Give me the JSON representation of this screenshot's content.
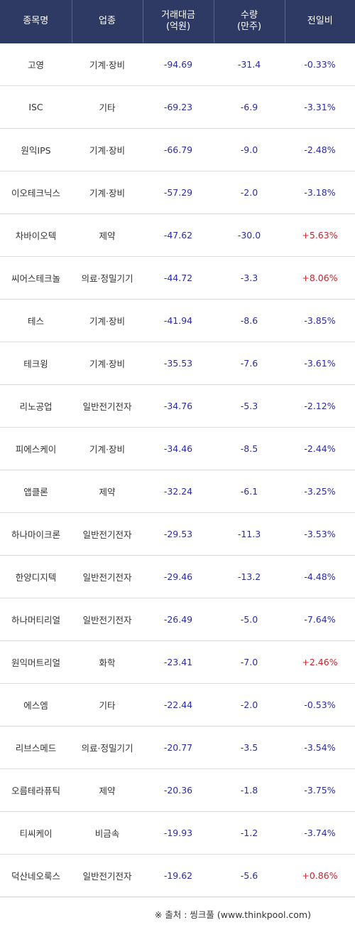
{
  "headers": [
    "종목명",
    "업종",
    "거래대금\n(억원)",
    "수량\n(만주)",
    "전일비"
  ],
  "rows": [
    {
      "name": "고영",
      "sector": "기계·장비",
      "amount": "-94.69",
      "volume": "-31.4",
      "change": "-0.33%"
    },
    {
      "name": "ISC",
      "sector": "기타",
      "amount": "-69.23",
      "volume": "-6.9",
      "change": "-3.31%"
    },
    {
      "name": "원익IPS",
      "sector": "기계·장비",
      "amount": "-66.79",
      "volume": "-9.0",
      "change": "-2.48%"
    },
    {
      "name": "이오테크닉스",
      "sector": "기계·장비",
      "amount": "-57.29",
      "volume": "-2.0",
      "change": "-3.18%"
    },
    {
      "name": "차바이오텍",
      "sector": "제약",
      "amount": "-47.62",
      "volume": "-30.0",
      "change": "+5.63%"
    },
    {
      "name": "씨어스테크놀",
      "sector": "의료·정밀기기",
      "amount": "-44.72",
      "volume": "-3.3",
      "change": "+8.06%"
    },
    {
      "name": "테스",
      "sector": "기계·장비",
      "amount": "-41.94",
      "volume": "-8.6",
      "change": "-3.85%"
    },
    {
      "name": "테크윙",
      "sector": "기계·장비",
      "amount": "-35.53",
      "volume": "-7.6",
      "change": "-3.61%"
    },
    {
      "name": "리노공업",
      "sector": "일반전기전자",
      "amount": "-34.76",
      "volume": "-5.3",
      "change": "-2.12%"
    },
    {
      "name": "피에스케이",
      "sector": "기계·장비",
      "amount": "-34.46",
      "volume": "-8.5",
      "change": "-2.44%"
    },
    {
      "name": "앱클론",
      "sector": "제약",
      "amount": "-32.24",
      "volume": "-6.1",
      "change": "-3.25%"
    },
    {
      "name": "하나마이크론",
      "sector": "일반전기전자",
      "amount": "-29.53",
      "volume": "-11.3",
      "change": "-3.53%"
    },
    {
      "name": "한양디지텍",
      "sector": "일반전기전자",
      "amount": "-29.46",
      "volume": "-13.2",
      "change": "-4.48%"
    },
    {
      "name": "하나머티리얼",
      "sector": "일반전기전자",
      "amount": "-26.49",
      "volume": "-5.0",
      "change": "-7.64%"
    },
    {
      "name": "원익머트리얼",
      "sector": "화학",
      "amount": "-23.41",
      "volume": "-7.0",
      "change": "+2.46%"
    },
    {
      "name": "에스엠",
      "sector": "기타",
      "amount": "-22.44",
      "volume": "-2.0",
      "change": "-0.53%"
    },
    {
      "name": "리브스메드",
      "sector": "의료·정밀기기",
      "amount": "-20.77",
      "volume": "-3.5",
      "change": "-3.54%"
    },
    {
      "name": "오름테라퓨틱",
      "sector": "제약",
      "amount": "-20.36",
      "volume": "-1.8",
      "change": "-3.75%"
    },
    {
      "name": "티씨케이",
      "sector": "비금속",
      "amount": "-19.93",
      "volume": "-1.2",
      "change": "-3.74%"
    },
    {
      "name": "덕산네오룩스",
      "sector": "일반전기전자",
      "amount": "-19.62",
      "volume": "-5.6",
      "change": "+0.86%"
    }
  ],
  "source": "※ 출처 : 씽크풀 (www.thinkpool.com)",
  "colors": {
    "header_bg": "#2e3a63",
    "negative": "#2b2ba8",
    "positive": "#d0202a"
  }
}
